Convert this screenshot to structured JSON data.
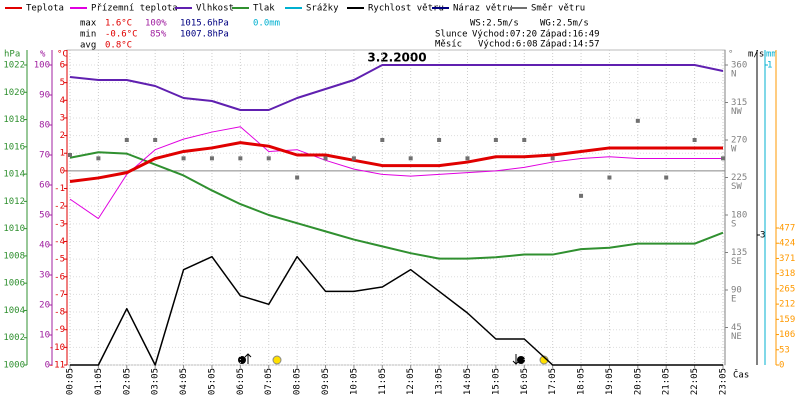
{
  "summary": {
    "max_label": "max",
    "max_temp": "1.6°C",
    "max_hum": "100%",
    "max_press": "1015.6hPa",
    "max_rain": "0.0mm",
    "min_label": "min",
    "min_temp": "-0.6°C",
    "min_hum": "85%",
    "min_press": "1007.8hPa",
    "avg_label": "avg",
    "avg_temp": "0.8°C",
    "ws": "WS:2.5m/s",
    "wg": "WG:2.5m/s",
    "sun_label": "Slunce",
    "sunrise": "Východ:07:20",
    "sunset": "Západ:16:49",
    "moon_label": "Měsíc",
    "moonrise": "Východ:6:08",
    "moonset": "Západ:14:57"
  },
  "chart_data": {
    "type": "line",
    "title": "3.2.2000",
    "x_label": "Čas",
    "grid": true,
    "categories": [
      "00:05",
      "01:05",
      "02:05",
      "03:05",
      "04:05",
      "05:05",
      "06:05",
      "07:05",
      "08:05",
      "09:05",
      "10:05",
      "11:05",
      "12:05",
      "13:05",
      "14:05",
      "15:05",
      "16:05",
      "17:05",
      "18:05",
      "19:05",
      "20:05",
      "21:05",
      "22:05",
      "23:05"
    ],
    "axes": [
      {
        "label": "hPa",
        "color": "#309030",
        "lim": [
          1000,
          1022
        ],
        "ticks": [
          1000,
          1002,
          1004,
          1006,
          1008,
          1010,
          1012,
          1014,
          1016,
          1018,
          1020,
          1022
        ]
      },
      {
        "label": "%",
        "color": "#a020a0",
        "lim": [
          0,
          100
        ],
        "ticks": [
          0,
          10,
          20,
          30,
          40,
          50,
          60,
          70,
          80,
          90,
          100
        ]
      },
      {
        "label": "°C",
        "color": "#e00000",
        "lim": [
          -11,
          6
        ],
        "ticks": [
          -11,
          -10,
          -9,
          -8,
          -7,
          -6,
          -5,
          -4,
          -3,
          -2,
          -1,
          0,
          1,
          2,
          3,
          4,
          5,
          6
        ]
      },
      {
        "label": "°",
        "color": "#808080",
        "lim": [
          0,
          360
        ],
        "ticks": [
          45,
          90,
          135,
          180,
          225,
          270,
          315,
          360
        ],
        "tick_names": [
          "NE",
          "E",
          "SE",
          "S",
          "SW",
          "W",
          "NW",
          "N"
        ]
      },
      {
        "label": "m/s",
        "color": "#000000",
        "lim": [
          0,
          3
        ],
        "ticks": [
          3
        ]
      },
      {
        "label": "mm",
        "color": "#00b0d0",
        "lim": [
          0,
          1
        ],
        "ticks": [
          1
        ]
      },
      {
        "color": "#ff9900",
        "lim": [
          0,
          477
        ],
        "ticks": [
          0,
          53,
          106,
          159,
          212,
          265,
          318,
          371,
          424,
          477
        ]
      }
    ],
    "series": [
      {
        "name": "Teplota",
        "color": "#e00000",
        "axis": 2,
        "width": 3,
        "values": [
          -0.6,
          -0.4,
          -0.1,
          0.7,
          1.1,
          1.3,
          1.6,
          1.4,
          0.9,
          0.9,
          0.6,
          0.3,
          0.3,
          0.3,
          0.5,
          0.8,
          0.8,
          0.9,
          1.1,
          1.3,
          1.3,
          1.3,
          1.3,
          1.3
        ]
      },
      {
        "name": "Přízemní teplota",
        "color": "#e000e0",
        "axis": 2,
        "width": 1,
        "values": [
          -1.6,
          -2.7,
          -0.2,
          1.2,
          1.8,
          2.2,
          2.5,
          1.1,
          1.2,
          0.6,
          0.1,
          -0.2,
          -0.3,
          -0.2,
          -0.1,
          0,
          0.2,
          0.5,
          0.7,
          0.8,
          0.7,
          0.7,
          0.7,
          0.7
        ]
      },
      {
        "name": "Vlhkost",
        "color": "#6020b0",
        "axis": 1,
        "width": 2,
        "values": [
          96,
          95,
          95,
          93,
          89,
          88,
          85,
          85,
          89,
          92,
          95,
          100,
          100,
          100,
          100,
          100,
          100,
          100,
          100,
          100,
          100,
          100,
          100,
          98
        ]
      },
      {
        "name": "Tlak",
        "color": "#309030",
        "axis": 0,
        "width": 2,
        "values": [
          1015.2,
          1015.6,
          1015.5,
          1014.7,
          1013.9,
          1012.8,
          1011.8,
          1011.0,
          1010.4,
          1009.8,
          1009.2,
          1008.7,
          1008.2,
          1007.8,
          1007.8,
          1007.9,
          1008.1,
          1008.1,
          1008.5,
          1008.6,
          1008.9,
          1008.9,
          1008.9,
          1009.7
        ]
      },
      {
        "name": "Srážky",
        "color": "#00b0d0"
      },
      {
        "name": "Rychlost větru",
        "color": "#000000",
        "axis": 4,
        "width": 1.5,
        "values": [
          0,
          0,
          1.3,
          0,
          2.2,
          2.5,
          1.6,
          1.4,
          2.5,
          1.7,
          1.7,
          1.8,
          2.2,
          1.7,
          1.2,
          0.6,
          0.6,
          0,
          0,
          0,
          0,
          0,
          0,
          0
        ]
      },
      {
        "name": "Náraz větru",
        "color": "#000080"
      },
      {
        "name": "Směr větru",
        "color": "#707070",
        "axis": 3,
        "style": "markers",
        "values": [
          252,
          248,
          270,
          270,
          248,
          248,
          248,
          248,
          225,
          248,
          248,
          270,
          248,
          270,
          248,
          270,
          270,
          248,
          203,
          225,
          293,
          225,
          270,
          248
        ]
      }
    ]
  }
}
